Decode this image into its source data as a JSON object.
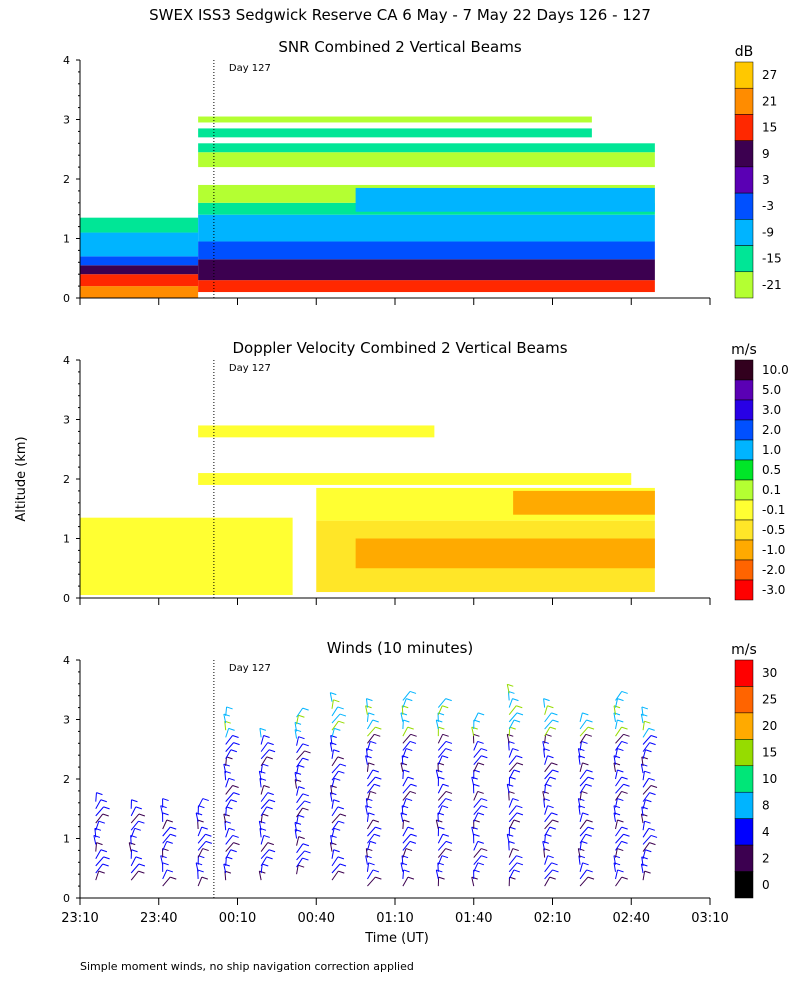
{
  "header": {
    "title": "SWEX ISS3 Sedgwick Reserve CA   6 May -  7 May 22 Days 126 - 127"
  },
  "footer_note": "Simple moment winds, no ship navigation correction applied",
  "chart_data": [
    {
      "type": "heatmap",
      "title": "SNR Combined 2 Vertical Beams",
      "ylabel": "",
      "day_marker": "Day 127",
      "ylim": [
        0,
        4
      ],
      "yticks": [
        "0",
        "1",
        "2",
        "3",
        "4"
      ],
      "colorbar": {
        "unit": "dB",
        "levels": [
          "27",
          "21",
          "15",
          "9",
          "3",
          "-3",
          "-9",
          "-15",
          "-21"
        ],
        "colors": [
          "#ffc800",
          "#ff8c00",
          "#ff2800",
          "#3c0050",
          "#5a00b4",
          "#0050ff",
          "#00b4ff",
          "#00e696",
          "#b4ff32"
        ]
      },
      "layers": [
        {
          "x_start": 0.0,
          "x_end": 1.5,
          "alt_bottom": 0.0,
          "alt_top": 0.2,
          "color": "#ff8c00"
        },
        {
          "x_start": 0.0,
          "x_end": 1.5,
          "alt_bottom": 0.2,
          "alt_top": 0.4,
          "color": "#ff2800"
        },
        {
          "x_start": 0.0,
          "x_end": 1.5,
          "alt_bottom": 0.4,
          "alt_top": 0.55,
          "color": "#3c0050"
        },
        {
          "x_start": 0.0,
          "x_end": 1.5,
          "alt_bottom": 0.55,
          "alt_top": 0.7,
          "color": "#0050ff"
        },
        {
          "x_start": 0.0,
          "x_end": 1.5,
          "alt_bottom": 0.7,
          "alt_top": 1.1,
          "color": "#00b4ff"
        },
        {
          "x_start": 0.0,
          "x_end": 1.5,
          "alt_bottom": 1.1,
          "alt_top": 1.35,
          "color": "#00e696"
        },
        {
          "x_start": 1.5,
          "x_end": 7.3,
          "alt_bottom": 0.1,
          "alt_top": 0.3,
          "color": "#ff2800"
        },
        {
          "x_start": 1.5,
          "x_end": 7.3,
          "alt_bottom": 0.3,
          "alt_top": 0.65,
          "color": "#3c0050"
        },
        {
          "x_start": 1.5,
          "x_end": 7.3,
          "alt_bottom": 0.65,
          "alt_top": 0.95,
          "color": "#0050ff"
        },
        {
          "x_start": 1.5,
          "x_end": 7.3,
          "alt_bottom": 0.95,
          "alt_top": 1.4,
          "color": "#00b4ff"
        },
        {
          "x_start": 1.5,
          "x_end": 7.3,
          "alt_bottom": 1.4,
          "alt_top": 1.6,
          "color": "#00e696"
        },
        {
          "x_start": 1.5,
          "x_end": 7.3,
          "alt_bottom": 1.6,
          "alt_top": 1.9,
          "color": "#b4ff32"
        },
        {
          "x_start": 3.5,
          "x_end": 7.3,
          "alt_bottom": 1.45,
          "alt_top": 1.85,
          "color": "#00b4ff"
        },
        {
          "x_start": 1.5,
          "x_end": 7.3,
          "alt_bottom": 2.2,
          "alt_top": 2.45,
          "color": "#b4ff32"
        },
        {
          "x_start": 1.5,
          "x_end": 7.3,
          "alt_bottom": 2.45,
          "alt_top": 2.6,
          "color": "#00e696"
        },
        {
          "x_start": 1.5,
          "x_end": 6.5,
          "alt_bottom": 2.7,
          "alt_top": 2.85,
          "color": "#00e696"
        },
        {
          "x_start": 1.5,
          "x_end": 6.5,
          "alt_bottom": 2.95,
          "alt_top": 3.05,
          "color": "#b4ff32"
        }
      ]
    },
    {
      "type": "heatmap",
      "title": "Doppler Velocity Combined 2 Vertical Beams",
      "ylabel": "Altitude (km)",
      "day_marker": "Day 127",
      "ylim": [
        0,
        4
      ],
      "yticks": [
        "0",
        "1",
        "2",
        "3",
        "4"
      ],
      "colorbar": {
        "unit": "m/s",
        "levels": [
          "10.0",
          "5.0",
          "3.0",
          "2.0",
          "1.0",
          "0.5",
          "0.1",
          "-0.1",
          "-0.5",
          "-1.0",
          "-2.0",
          "-3.0"
        ],
        "colors": [
          "#32001e",
          "#5a00b4",
          "#2800e6",
          "#0050ff",
          "#00b4ff",
          "#00e628",
          "#b4ff32",
          "#ffff32",
          "#ffe628",
          "#ffaa00",
          "#ff6400",
          "#ff0000"
        ]
      },
      "layers": [
        {
          "x_start": 0.0,
          "x_end": 2.7,
          "alt_bottom": 0.05,
          "alt_top": 1.35,
          "color": "#ffff32"
        },
        {
          "x_start": 3.0,
          "x_end": 7.3,
          "alt_bottom": 0.1,
          "alt_top": 1.3,
          "color": "#ffe628"
        },
        {
          "x_start": 3.5,
          "x_end": 7.3,
          "alt_bottom": 0.5,
          "alt_top": 1.0,
          "color": "#ffaa00"
        },
        {
          "x_start": 3.0,
          "x_end": 7.3,
          "alt_bottom": 1.3,
          "alt_top": 1.85,
          "color": "#ffff32"
        },
        {
          "x_start": 5.5,
          "x_end": 7.3,
          "alt_bottom": 1.4,
          "alt_top": 1.8,
          "color": "#ffaa00"
        },
        {
          "x_start": 1.5,
          "x_end": 7.0,
          "alt_bottom": 1.9,
          "alt_top": 2.1,
          "color": "#ffff32"
        },
        {
          "x_start": 1.5,
          "x_end": 4.5,
          "alt_bottom": 2.7,
          "alt_top": 2.9,
          "color": "#ffff32"
        }
      ]
    },
    {
      "type": "wind_barbs",
      "title": "Winds (10 minutes)",
      "ylabel": "",
      "day_marker": "Day 127",
      "ylim": [
        0,
        4
      ],
      "yticks": [
        "0",
        "1",
        "2",
        "3",
        "4"
      ],
      "colorbar": {
        "unit": "m/s",
        "levels": [
          "30",
          "25",
          "20",
          "15",
          "10",
          "8",
          "4",
          "2",
          "0"
        ],
        "colors": [
          "#ff0000",
          "#ff6400",
          "#ffaa00",
          "#96dc00",
          "#00e678",
          "#00b4ff",
          "#0000ff",
          "#3c0050",
          "#000000"
        ]
      },
      "profiles": [
        {
          "x": 0.2,
          "base_km": 0.3,
          "top_km": 1.6,
          "speed": 4
        },
        {
          "x": 0.65,
          "base_km": 0.3,
          "top_km": 1.5,
          "speed": 4
        },
        {
          "x": 1.05,
          "base_km": 0.2,
          "top_km": 1.5,
          "speed": 4
        },
        {
          "x": 1.5,
          "base_km": 0.2,
          "top_km": 1.5,
          "speed": 4
        },
        {
          "x": 1.85,
          "base_km": 0.3,
          "top_km": 3.0,
          "speed": 8
        },
        {
          "x": 2.3,
          "base_km": 0.3,
          "top_km": 2.7,
          "speed": 8
        },
        {
          "x": 2.75,
          "base_km": 0.4,
          "top_km": 3.0,
          "speed": 10
        },
        {
          "x": 3.2,
          "base_km": 0.3,
          "top_km": 3.3,
          "speed": 8
        },
        {
          "x": 3.65,
          "base_km": 0.2,
          "top_km": 3.2,
          "speed": 4
        },
        {
          "x": 4.1,
          "base_km": 0.2,
          "top_km": 3.3,
          "speed": 4
        },
        {
          "x": 4.55,
          "base_km": 0.2,
          "top_km": 3.2,
          "speed": 4
        },
        {
          "x": 5.0,
          "base_km": 0.2,
          "top_km": 3.0,
          "speed": 4
        },
        {
          "x": 5.45,
          "base_km": 0.2,
          "top_km": 3.4,
          "speed": 4
        },
        {
          "x": 5.9,
          "base_km": 0.2,
          "top_km": 3.2,
          "speed": 8
        },
        {
          "x": 6.35,
          "base_km": 0.2,
          "top_km": 3.0,
          "speed": 4
        },
        {
          "x": 6.8,
          "base_km": 0.2,
          "top_km": 3.3,
          "speed": 8
        },
        {
          "x": 7.15,
          "base_km": 0.3,
          "top_km": 3.1,
          "speed": 8
        }
      ]
    }
  ],
  "xaxis": {
    "label": "Time (UT)",
    "ticks": [
      "23:10",
      "23:40",
      "00:10",
      "00:40",
      "01:10",
      "01:40",
      "02:10",
      "02:40",
      "03:10"
    ]
  }
}
